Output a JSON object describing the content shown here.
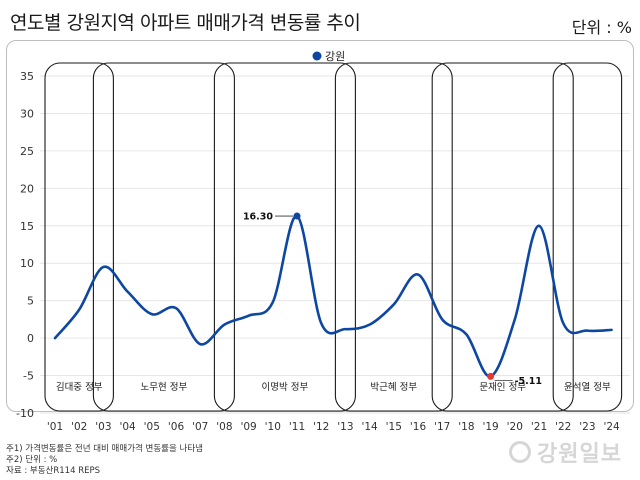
{
  "header": {
    "title": "연도별 강원지역 아파트 매매가격 변동률 추이",
    "unit": "단위 : %"
  },
  "notes": [
    "주1) 가격변동률은 전년 대비 매매가격 변동률을 나타냄",
    "주2) 단위 : %",
    "자료 : 부동산R114 REPS"
  ],
  "watermark": "강원일보",
  "chart_data": {
    "type": "line",
    "title": "연도별 강원지역 아파트 매매가격 변동률 추이",
    "ylim": [
      -10,
      35
    ],
    "yticks": [
      35,
      30,
      25,
      20,
      15,
      10,
      5,
      0,
      -5,
      -10
    ],
    "xticks": [
      "'01",
      "'02",
      "'03",
      "'04",
      "'05",
      "'06",
      "'07",
      "'08",
      "'09",
      "'10",
      "'11",
      "'12",
      "'13",
      "'14",
      "'15",
      "'16",
      "'17",
      "'18",
      "'19",
      "'20",
      "'21",
      "'22",
      "'23",
      "'24"
    ],
    "legend": {
      "label": "강원",
      "color": "#0d47a1",
      "placement": "top-center"
    },
    "series": [
      {
        "name": "강원",
        "x": [
          2001,
          2002,
          2003,
          2004,
          2005,
          2006,
          2007,
          2008,
          2009,
          2010,
          2011,
          2012,
          2013,
          2014,
          2015,
          2016,
          2017,
          2018,
          2019,
          2020,
          2021,
          2022,
          2023,
          2024
        ],
        "values": [
          0.0,
          3.8,
          9.5,
          6.2,
          3.2,
          4.0,
          -0.8,
          1.8,
          3.0,
          4.8,
          16.3,
          2.0,
          1.2,
          1.8,
          4.5,
          8.5,
          2.5,
          0.5,
          -5.11,
          2.5,
          15.0,
          2.0,
          1.0,
          1.1
        ]
      }
    ],
    "annotations": [
      {
        "label": "16.30",
        "x": 2011,
        "y": 16.3,
        "color": "#0d47a1"
      },
      {
        "label": "-5.11",
        "x": 2019,
        "y": -5.11,
        "color": "#e53935"
      }
    ],
    "periods": [
      {
        "label": "김대중 정부",
        "start": 2001,
        "end": 2003
      },
      {
        "label": "노무현 정부",
        "start": 2003,
        "end": 2008
      },
      {
        "label": "이명박 정부",
        "start": 2008,
        "end": 2013
      },
      {
        "label": "박근혜 정부",
        "start": 2013,
        "end": 2017
      },
      {
        "label": "문재인 정부",
        "start": 2017,
        "end": 2022
      },
      {
        "label": "윤석열 정부",
        "start": 2022,
        "end": 2024
      }
    ],
    "grid": true
  }
}
